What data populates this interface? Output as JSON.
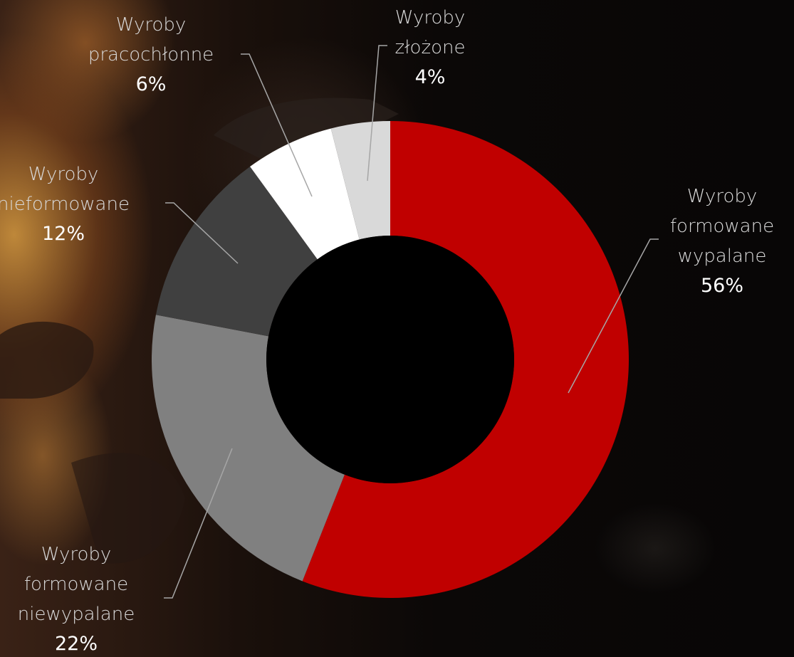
{
  "chart_data": {
    "type": "pie",
    "variant": "donut",
    "title": "",
    "slices": [
      {
        "label_lines": [
          "Wyroby",
          "formowane",
          "wypalane"
        ],
        "value": 56,
        "value_label": "56%",
        "color": "#c00000"
      },
      {
        "label_lines": [
          "Wyroby",
          "formowane",
          "niewypalane"
        ],
        "value": 22,
        "value_label": "22%",
        "color": "#808080"
      },
      {
        "label_lines": [
          "Wyroby",
          "nieformowane"
        ],
        "value": 12,
        "value_label": "12%",
        "color": "#404040"
      },
      {
        "label_lines": [
          "Wyroby",
          "pracochłonne"
        ],
        "value": 6,
        "value_label": "6%",
        "color": "#ffffff"
      },
      {
        "label_lines": [
          "Wyroby",
          "złożone"
        ],
        "value": 4,
        "value_label": "4%",
        "color": "#d9d9d9"
      }
    ],
    "start_angle": "12 o'clock",
    "direction": "clockwise",
    "legend": "none",
    "data_labels": "outside with leader lines"
  },
  "colors": {
    "background": "#0a0807",
    "label_text": "#d9d9d9",
    "value_text": "#ffffff",
    "leader_line": "#a6a6a6",
    "donut_hole": "#000000"
  }
}
